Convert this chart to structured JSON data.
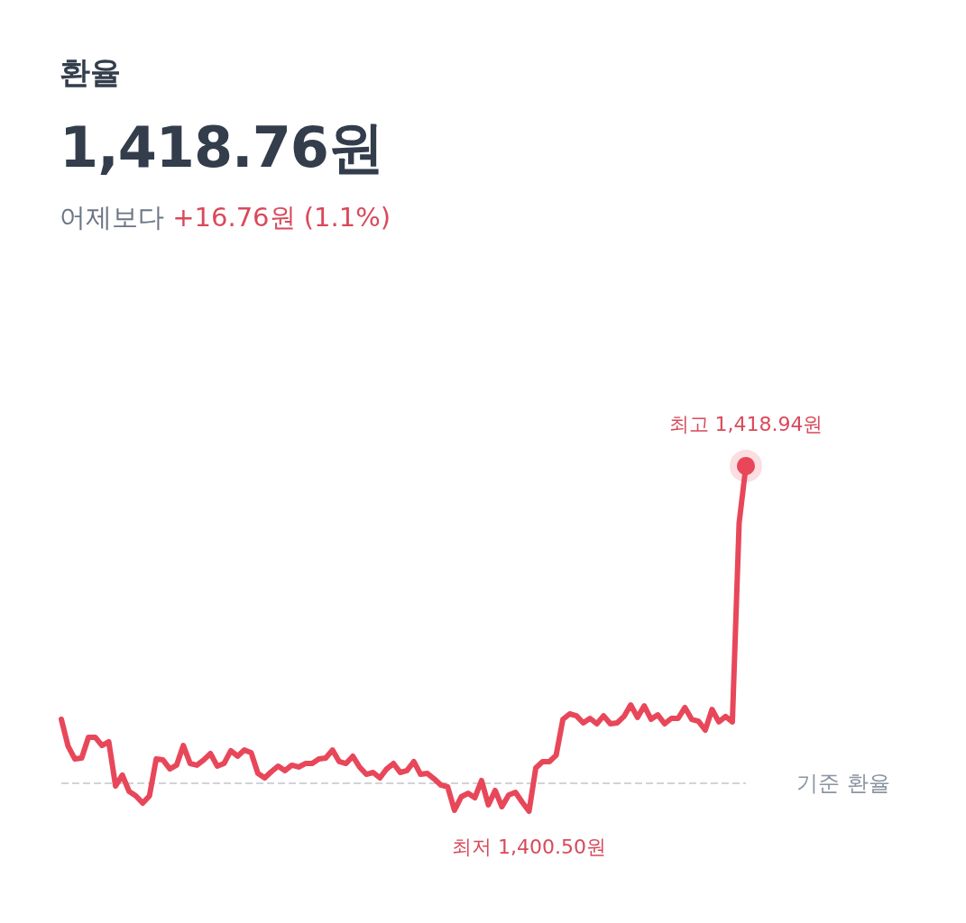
{
  "chart_data": {
    "type": "line",
    "title": "환율",
    "subtitle": "1,418.76원",
    "annotations": [
      "어제보다",
      "+16.76원 (1.1%)"
    ],
    "categories": [
      null,
      null,
      null,
      null,
      null,
      null,
      null,
      null,
      null,
      null,
      null,
      null,
      null,
      null,
      null,
      null,
      null,
      null,
      null,
      null,
      null,
      null,
      null,
      null,
      null,
      null,
      null,
      null,
      null,
      null,
      null,
      null,
      null,
      null,
      null,
      null,
      null,
      null,
      null,
      null,
      null,
      null,
      null,
      null,
      null,
      null,
      null,
      null,
      null,
      null,
      null,
      null,
      null,
      null,
      null,
      null,
      null,
      null,
      null,
      null,
      null,
      null,
      null,
      null,
      null,
      null,
      null,
      null,
      null,
      null,
      null,
      null,
      null,
      null,
      null,
      null,
      null,
      null,
      null,
      null,
      null,
      null,
      null,
      null,
      null,
      null,
      null,
      null,
      null,
      null,
      null,
      null,
      null,
      null,
      null,
      null,
      null,
      null,
      null,
      null,
      null,
      null
    ],
    "series": [
      {
        "color": "#e8475a",
        "values": [
          1405.41,
          1403.97,
          1403.29,
          1403.34,
          1404.45,
          1404.45,
          1404.01,
          1404.21,
          1401.85,
          1402.43,
          1401.56,
          1401.32,
          1400.93,
          1401.32,
          1403.29,
          1403.24,
          1402.76,
          1402.96,
          1404.01,
          1403.05,
          1402.96,
          1403.24,
          1403.58,
          1402.91,
          1403.05,
          1403.73,
          1403.44,
          1403.77,
          1403.63,
          1402.52,
          1402.28,
          1402.62,
          1402.91,
          1402.67,
          1402.96,
          1402.86,
          1403.05,
          1403.05,
          1403.29,
          1403.34,
          1403.77,
          1403.15,
          1403.05,
          1403.44,
          1402.86,
          1402.47,
          1402.57,
          1402.28,
          1402.76,
          1403.05,
          1402.57,
          1402.67,
          1403.15,
          1402.47,
          1402.52,
          1402.23,
          1401.9,
          1401.8,
          1400.55,
          1401.27,
          1401.46,
          1401.22,
          1402.14,
          1400.84,
          1401.61,
          1400.74,
          1401.37,
          1401.51,
          1400.98,
          1400.5,
          1402.81,
          1403.15,
          1403.15,
          1403.49,
          1405.41,
          1405.7,
          1405.6,
          1405.22,
          1405.46,
          1405.17,
          1405.6,
          1405.17,
          1405.22,
          1405.56,
          1406.18,
          1405.51,
          1406.13,
          1405.41,
          1405.65,
          1405.17,
          1405.46,
          1405.46,
          1406.04,
          1405.41,
          1405.31,
          1404.83,
          1405.94,
          1405.27,
          1405.56,
          1405.27,
          1415.91,
          1418.94
        ],
        "value_labels": [
          null,
          null,
          null,
          null,
          null,
          null,
          null,
          null,
          null,
          null,
          null,
          null,
          null,
          null,
          null,
          null,
          null,
          null,
          null,
          null,
          null,
          null,
          null,
          null,
          null,
          null,
          null,
          null,
          null,
          null,
          null,
          null,
          null,
          null,
          null,
          null,
          null,
          null,
          null,
          null,
          null,
          null,
          null,
          null,
          null,
          null,
          null,
          null,
          null,
          null,
          null,
          null,
          null,
          null,
          null,
          null,
          null,
          null,
          null,
          null,
          null,
          null,
          null,
          null,
          null,
          null,
          null,
          null,
          null,
          "최저 1,400.50원",
          null,
          null,
          null,
          null,
          null,
          null,
          null,
          null,
          null,
          null,
          null,
          null,
          null,
          null,
          null,
          null,
          null,
          null,
          null,
          null,
          null,
          null,
          null,
          null,
          null,
          null,
          null,
          null,
          null,
          null,
          null,
          "최고 1,418.94원"
        ]
      }
    ],
    "grid": false,
    "marker": "none",
    "line_style": "solid",
    "ref_lines": [
      {
        "axis": "y",
        "value": 1402,
        "label": "기준 환율",
        "color": "#d0d3d8",
        "line_style": "dashed"
      }
    ]
  }
}
